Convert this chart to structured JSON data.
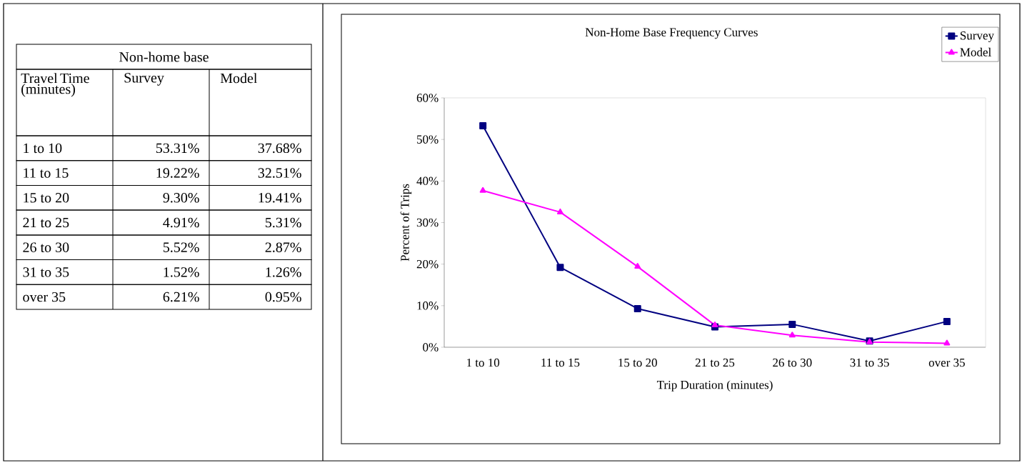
{
  "chart_data": [
    {
      "type": "other",
      "title": "Non-home base",
      "annotations": [
        "Travel Time (minutes)",
        "Survey",
        "Model",
        "1 to 10",
        "53.31%",
        "37.68%",
        "11 to 15",
        "19.22%",
        "32.51%",
        "15 to 20",
        "9.30%",
        "19.41%",
        "21 to 25",
        "4.91%",
        "5.31%",
        "26 to 30",
        "5.52%",
        "2.87%",
        "31 to 35",
        "1.52%",
        "1.26%",
        "over 35",
        "6.21%",
        "0.95%"
      ]
    },
    {
      "type": "line",
      "title": "Non-Home Base Frequency Curves",
      "xlabel": "Trip Duration (minutes)",
      "ylabel": "Percent of Trips",
      "categories": [
        "1 to 10",
        "11 to 15",
        "15 to 20",
        "21 to 25",
        "26 to 30",
        "31 to 35",
        "over 35"
      ],
      "series": [
        {
          "name": "Survey",
          "color": "#000080",
          "marker": "square",
          "values": [
            53.31,
            19.22,
            9.3,
            4.91,
            5.52,
            1.52,
            6.21
          ]
        },
        {
          "name": "Model",
          "color": "#ff00ff",
          "marker": "triangle",
          "values": [
            37.68,
            32.51,
            19.41,
            5.31,
            2.87,
            1.26,
            0.95
          ]
        }
      ],
      "ylim": [
        0,
        60
      ],
      "yticks": [
        {
          "value": 0,
          "label": "0%"
        },
        {
          "value": 10,
          "label": "10%"
        },
        {
          "value": 20,
          "label": "20%"
        },
        {
          "value": 30,
          "label": "30%"
        },
        {
          "value": 40,
          "label": "40%"
        },
        {
          "value": 50,
          "label": "50%"
        },
        {
          "value": 60,
          "label": "60%"
        }
      ],
      "legend": "top right"
    }
  ]
}
